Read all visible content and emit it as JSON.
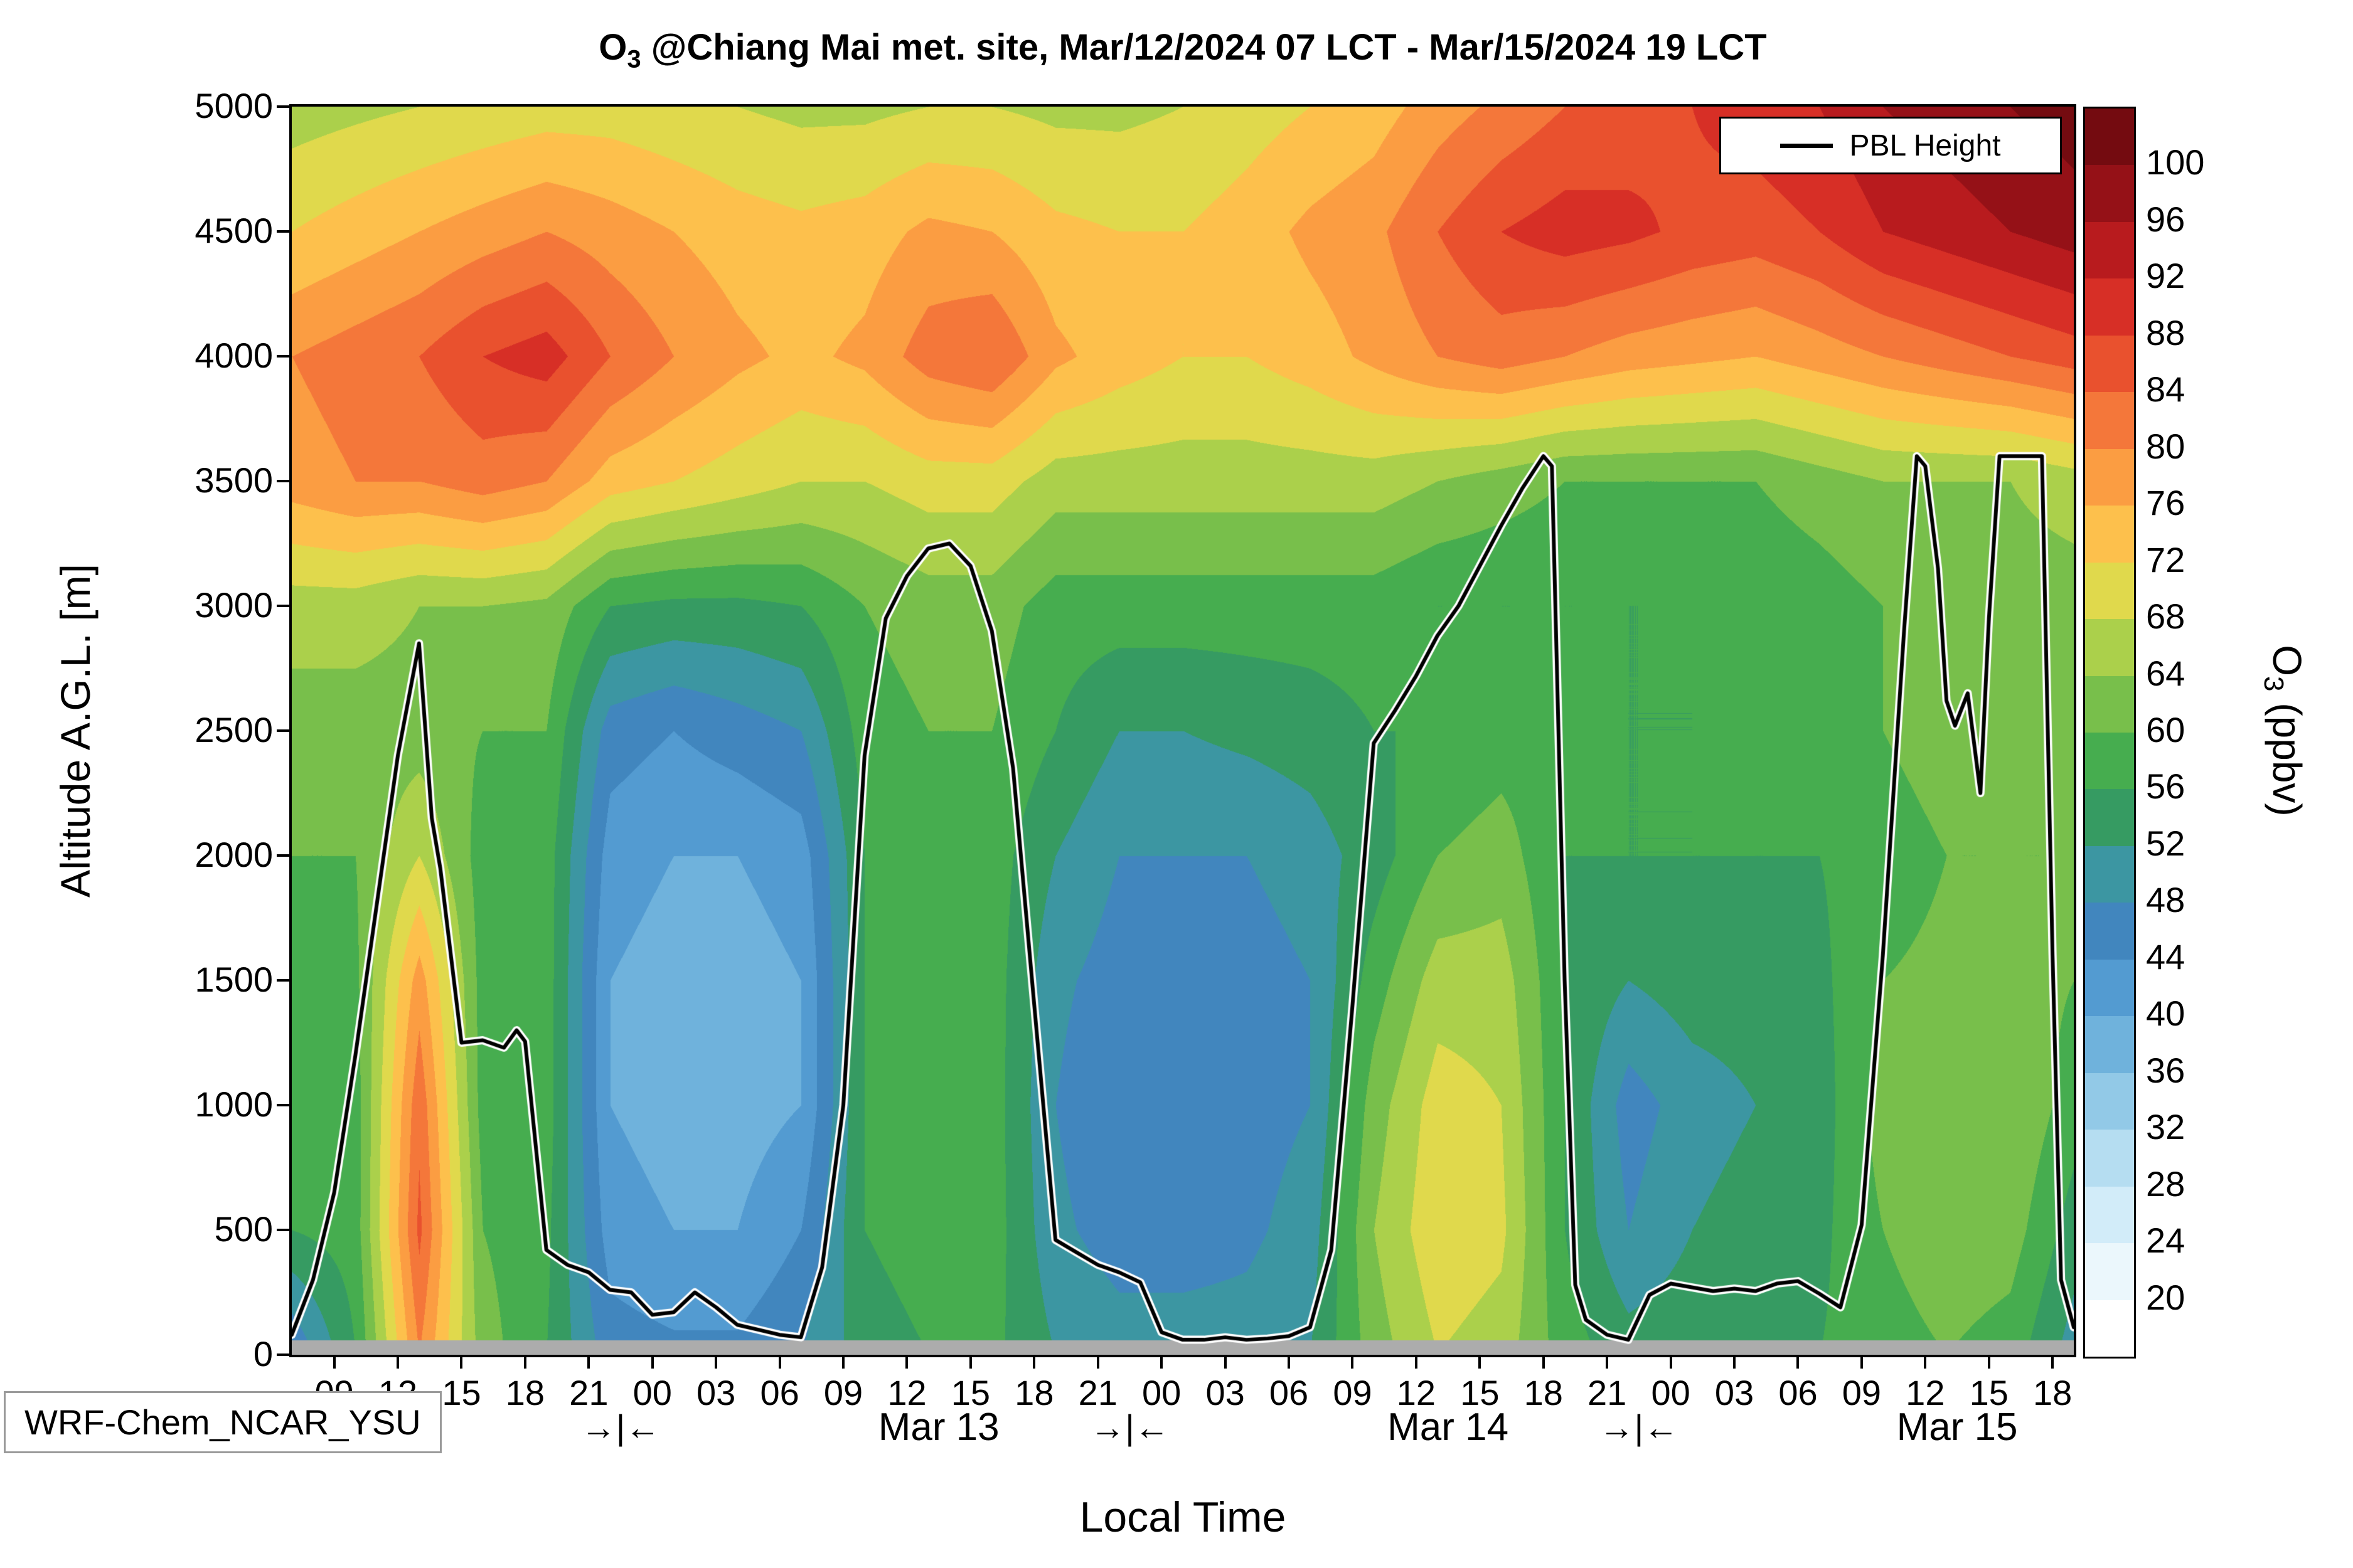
{
  "title": {
    "o": "O",
    "sub": "3",
    "rest": " @Chiang Mai met. site, Mar/12/2024 07 LCT - Mar/15/2024 19 LCT"
  },
  "model_label": "WRF-Chem_NCAR_YSU",
  "legend": {
    "label": "PBL Height"
  },
  "axes": {
    "ylabel": "Altitude A.G.L. [m]",
    "xlabel": "Local Time",
    "y_ticks": [
      0,
      500,
      1000,
      1500,
      2000,
      2500,
      3000,
      3500,
      4000,
      4500,
      5000
    ],
    "x_tick_hours": [
      9,
      12,
      15,
      18,
      21,
      24,
      27,
      30,
      33,
      36,
      39,
      42,
      45,
      48,
      51,
      54,
      57,
      60,
      63,
      66,
      69,
      72,
      75,
      78,
      81,
      84,
      87,
      90
    ],
    "x_tick_labels": [
      "09",
      "12",
      "15",
      "18",
      "21",
      "00",
      "03",
      "06",
      "09",
      "12",
      "15",
      "18",
      "21",
      "00",
      "03",
      "06",
      "09",
      "12",
      "15",
      "18",
      "21",
      "00",
      "03",
      "06",
      "09",
      "12",
      "15",
      "18"
    ],
    "x_range_hours": [
      7,
      91
    ],
    "y_range_m": [
      0,
      5000
    ]
  },
  "day_labels": [
    {
      "label": "Mar 13",
      "hour": 37.5
    },
    {
      "label": "Mar 14",
      "hour": 61.5
    },
    {
      "label": "Mar 15",
      "hour": 85.5
    }
  ],
  "day_separators": [
    {
      "label": "→|←",
      "hour": 22.5
    },
    {
      "label": "→|←",
      "hour": 46.5
    },
    {
      "label": "→|←",
      "hour": 70.5
    }
  ],
  "colorbar": {
    "label_o": "O",
    "label_sub": "3",
    "label_rest": " (ppbv)",
    "tick_values": [
      20,
      24,
      28,
      32,
      36,
      40,
      44,
      48,
      52,
      56,
      60,
      64,
      68,
      72,
      76,
      80,
      84,
      88,
      92,
      96,
      100
    ],
    "band_colors": [
      "#ffffff",
      "#ebf7fc",
      "#d2ecf9",
      "#b5ddf1",
      "#92c9e7",
      "#6fb2dc",
      "#539bd1",
      "#4186be",
      "#3c96a2",
      "#369b62",
      "#46ad4f",
      "#78bf4b",
      "#abd04b",
      "#e0d94c",
      "#fdc04c",
      "#fb9d42",
      "#f4773a",
      "#e9512e",
      "#d72f26",
      "#b81b1e",
      "#951117",
      "#740b10"
    ]
  },
  "chart_data": {
    "type": "heatmap",
    "subtype": "filled-contour-time-height",
    "title": "O3 @Chiang Mai met. site, Mar/12/2024 07 LCT - Mar/15/2024 19 LCT",
    "xlabel": "Local Time",
    "ylabel": "Altitude A.G.L. [m]",
    "units": "ppbv",
    "x_units": "hours since Mar/12/2024 00 LCT",
    "x_range": [
      7,
      91
    ],
    "y_range": [
      0,
      5000
    ],
    "color_levels_min": 20,
    "color_levels_max": 100,
    "color_level_step": 4,
    "surface_gray_below_m": 60,
    "grid": {
      "hours": [
        7,
        10,
        13,
        16,
        19,
        22,
        25,
        28,
        31,
        34,
        37,
        40,
        43,
        46,
        49,
        52,
        55,
        58,
        61,
        64,
        67,
        70,
        73,
        76,
        79,
        82,
        85,
        88,
        91
      ],
      "levels_m": [
        0,
        500,
        1000,
        1500,
        2000,
        2500,
        3000,
        3500,
        4000,
        4500,
        5000
      ],
      "o3_ppbv": [
        [
          44,
          56,
          58,
          58,
          60,
          62,
          66,
          78,
          80,
          72,
          66
        ],
        [
          56,
          58,
          58,
          59,
          60,
          62,
          66,
          80,
          82,
          74,
          67
        ],
        [
          80,
          85,
          83,
          78,
          68,
          62,
          64,
          80,
          84,
          76,
          68
        ],
        [
          62,
          60,
          58,
          58,
          58,
          60,
          64,
          82,
          88,
          78,
          69
        ],
        [
          56,
          57,
          58,
          58,
          58,
          60,
          63,
          80,
          90,
          80,
          70
        ],
        [
          46,
          42,
          40,
          40,
          42,
          46,
          56,
          74,
          84,
          78,
          70
        ],
        [
          45,
          40,
          38,
          38,
          40,
          44,
          55,
          72,
          80,
          76,
          69
        ],
        [
          45,
          40,
          38,
          38,
          40,
          46,
          55,
          70,
          77,
          74,
          68
        ],
        [
          48,
          44,
          40,
          40,
          42,
          48,
          56,
          68,
          75,
          73,
          67
        ],
        [
          54,
          56,
          56,
          56,
          56,
          58,
          60,
          68,
          77,
          74,
          67
        ],
        [
          56,
          58,
          58,
          58,
          58,
          60,
          62,
          70,
          82,
          77,
          68
        ],
        [
          57,
          58,
          58,
          58,
          58,
          60,
          62,
          70,
          84,
          76,
          68
        ],
        [
          52,
          49,
          48,
          49,
          52,
          56,
          58,
          66,
          77,
          73,
          67
        ],
        [
          50,
          46,
          44,
          46,
          48,
          52,
          58,
          66,
          74,
          72,
          67
        ],
        [
          50,
          46,
          45,
          46,
          48,
          52,
          58,
          66,
          72,
          72,
          68
        ],
        [
          50,
          47,
          46,
          46,
          48,
          53,
          58,
          66,
          72,
          74,
          70
        ],
        [
          52,
          50,
          48,
          48,
          50,
          54,
          58,
          66,
          74,
          77,
          72
        ],
        [
          62,
          64,
          62,
          58,
          54,
          56,
          58,
          66,
          77,
          79,
          74
        ],
        [
          68,
          71,
          70,
          66,
          60,
          56,
          56,
          64,
          80,
          84,
          78
        ],
        [
          66,
          69,
          68,
          66,
          62,
          58,
          56,
          62,
          82,
          88,
          81
        ],
        [
          58,
          56,
          56,
          56,
          56,
          58,
          56,
          60,
          80,
          90,
          84
        ],
        [
          54,
          48,
          46,
          52,
          56,
          56,
          56,
          60,
          78,
          89,
          86
        ],
        [
          55,
          52,
          50,
          54,
          56,
          56,
          56,
          60,
          77,
          87,
          88
        ],
        [
          56,
          54,
          52,
          54,
          56,
          57,
          57,
          60,
          76,
          86,
          90
        ],
        [
          56,
          55,
          54,
          55,
          56,
          58,
          58,
          62,
          78,
          88,
          92
        ],
        [
          58,
          60,
          62,
          60,
          58,
          60,
          60,
          64,
          80,
          92,
          96
        ],
        [
          60,
          63,
          63,
          61,
          60,
          62,
          62,
          64,
          82,
          94,
          98
        ],
        [
          58,
          62,
          64,
          62,
          60,
          62,
          62,
          64,
          84,
          96,
          100
        ],
        [
          50,
          54,
          58,
          60,
          60,
          62,
          62,
          66,
          86,
          98,
          102
        ]
      ]
    },
    "pbl_height": {
      "name": "PBL Height",
      "points_hour_m": [
        [
          7,
          80
        ],
        [
          8,
          300
        ],
        [
          9,
          650
        ],
        [
          10,
          1200
        ],
        [
          11,
          1800
        ],
        [
          12,
          2400
        ],
        [
          13,
          2850
        ],
        [
          13.6,
          2150
        ],
        [
          14,
          1950
        ],
        [
          15,
          1250
        ],
        [
          16,
          1260
        ],
        [
          17,
          1230
        ],
        [
          17.6,
          1300
        ],
        [
          18,
          1255
        ],
        [
          19,
          420
        ],
        [
          20,
          360
        ],
        [
          21,
          330
        ],
        [
          22,
          260
        ],
        [
          23,
          250
        ],
        [
          24,
          160
        ],
        [
          25,
          170
        ],
        [
          26,
          250
        ],
        [
          27,
          190
        ],
        [
          28,
          120
        ],
        [
          29,
          100
        ],
        [
          30,
          80
        ],
        [
          31,
          70
        ],
        [
          32,
          350
        ],
        [
          33,
          1000
        ],
        [
          34,
          2400
        ],
        [
          35,
          2950
        ],
        [
          36,
          3120
        ],
        [
          37,
          3230
        ],
        [
          38,
          3250
        ],
        [
          39,
          3160
        ],
        [
          40,
          2900
        ],
        [
          41,
          2350
        ],
        [
          42,
          1400
        ],
        [
          43,
          460
        ],
        [
          44,
          410
        ],
        [
          45,
          360
        ],
        [
          46,
          330
        ],
        [
          47,
          290
        ],
        [
          48,
          90
        ],
        [
          49,
          60
        ],
        [
          50,
          60
        ],
        [
          51,
          70
        ],
        [
          52,
          60
        ],
        [
          53,
          65
        ],
        [
          54,
          75
        ],
        [
          55,
          110
        ],
        [
          56,
          420
        ],
        [
          57,
          1400
        ],
        [
          58,
          2450
        ],
        [
          59,
          2580
        ],
        [
          60,
          2720
        ],
        [
          61,
          2880
        ],
        [
          62,
          3000
        ],
        [
          63,
          3160
        ],
        [
          64,
          3320
        ],
        [
          65,
          3470
        ],
        [
          66,
          3600
        ],
        [
          66.4,
          3560
        ],
        [
          67,
          1500
        ],
        [
          67.5,
          280
        ],
        [
          68,
          140
        ],
        [
          69,
          80
        ],
        [
          70,
          60
        ],
        [
          71,
          240
        ],
        [
          72,
          285
        ],
        [
          73,
          270
        ],
        [
          74,
          255
        ],
        [
          75,
          265
        ],
        [
          76,
          255
        ],
        [
          77,
          285
        ],
        [
          78,
          295
        ],
        [
          79,
          245
        ],
        [
          80,
          190
        ],
        [
          81,
          520
        ],
        [
          82,
          1600
        ],
        [
          83,
          2900
        ],
        [
          83.6,
          3600
        ],
        [
          84,
          3560
        ],
        [
          84.6,
          3150
        ],
        [
          85,
          2620
        ],
        [
          85.4,
          2520
        ],
        [
          86,
          2650
        ],
        [
          86.6,
          2250
        ],
        [
          87,
          2950
        ],
        [
          87.5,
          3600
        ],
        [
          89.5,
          3600
        ],
        [
          90,
          1600
        ],
        [
          90.4,
          300
        ],
        [
          91,
          110
        ]
      ]
    }
  }
}
